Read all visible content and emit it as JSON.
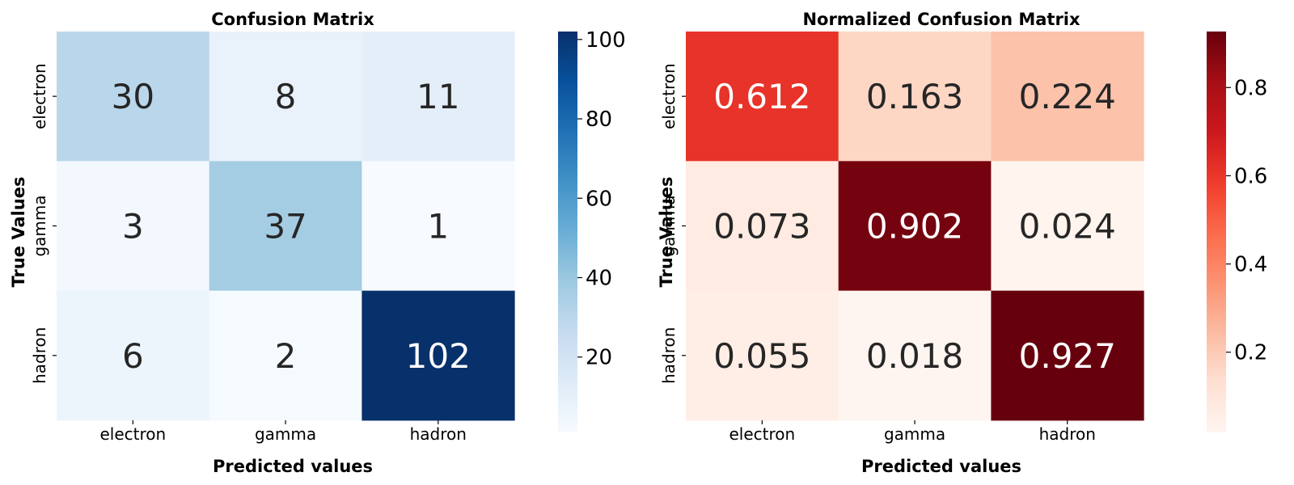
{
  "chart_data": [
    {
      "type": "heatmap",
      "title": "Confusion Matrix",
      "xlabel": "Predicted values",
      "ylabel": "True Values",
      "x_categories": [
        "electron",
        "gamma",
        "hadron"
      ],
      "y_categories": [
        "electron",
        "gamma",
        "hadron"
      ],
      "values": [
        [
          30,
          8,
          11
        ],
        [
          3,
          37,
          1
        ],
        [
          6,
          2,
          102
        ]
      ],
      "cell_labels": [
        [
          "30",
          "8",
          "11"
        ],
        [
          "3",
          "37",
          "1"
        ],
        [
          "6",
          "2",
          "102"
        ]
      ],
      "colormap": "Blues",
      "colormap_stops": [
        "#f7fbff",
        "#deebf7",
        "#c6dbef",
        "#9ecae1",
        "#6baed6",
        "#4292c6",
        "#2171b5",
        "#08519c",
        "#08306b"
      ],
      "vmin": 1,
      "vmax": 102,
      "colorbar_ticks": [
        20,
        40,
        60,
        80,
        100
      ],
      "colorbar_tick_labels": [
        "20",
        "40",
        "60",
        "80",
        "100"
      ]
    },
    {
      "type": "heatmap",
      "title": "Normalized Confusion Matrix",
      "xlabel": "Predicted values",
      "ylabel": "True Values",
      "x_categories": [
        "electron",
        "gamma",
        "hadron"
      ],
      "y_categories": [
        "electron",
        "gamma",
        "hadron"
      ],
      "values": [
        [
          0.612,
          0.163,
          0.224
        ],
        [
          0.073,
          0.902,
          0.024
        ],
        [
          0.055,
          0.018,
          0.927
        ]
      ],
      "cell_labels": [
        [
          "0.612",
          "0.163",
          "0.224"
        ],
        [
          "0.073",
          "0.902",
          "0.024"
        ],
        [
          "0.055",
          "0.018",
          "0.927"
        ]
      ],
      "colormap": "Reds",
      "colormap_stops": [
        "#fff5f0",
        "#fee0d2",
        "#fcbba1",
        "#fc9272",
        "#fb6a4a",
        "#ef3b2c",
        "#cb181d",
        "#a50f15",
        "#67000d"
      ],
      "vmin": 0.018,
      "vmax": 0.927,
      "colorbar_ticks": [
        0.2,
        0.4,
        0.6,
        0.8
      ],
      "colorbar_tick_labels": [
        "0.2",
        "0.4",
        "0.6",
        "0.8"
      ]
    }
  ]
}
